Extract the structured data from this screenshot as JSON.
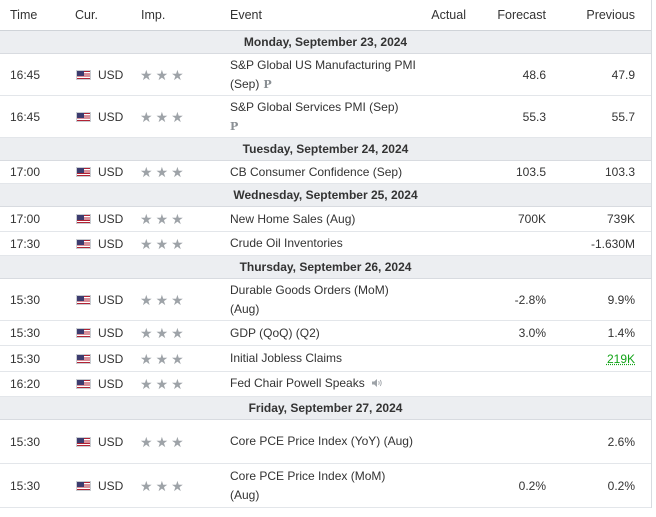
{
  "headers": {
    "time": "Time",
    "currency": "Cur.",
    "importance": "Imp.",
    "event": "Event",
    "actual": "Actual",
    "forecast": "Forecast",
    "previous": "Previous"
  },
  "days": [
    {
      "label": "Monday, September 23, 2024",
      "events": [
        {
          "time": "16:45",
          "currency": "USD",
          "event": "S&P Global US Manufacturing PMI (Sep)",
          "badge": "P",
          "actual": "",
          "forecast": "48.6",
          "previous": "47.9"
        },
        {
          "time": "16:45",
          "currency": "USD",
          "event": "S&P Global Services PMI (Sep)",
          "badge": "P",
          "actual": "",
          "forecast": "55.3",
          "previous": "55.7"
        }
      ]
    },
    {
      "label": "Tuesday, September 24, 2024",
      "events": [
        {
          "time": "17:00",
          "currency": "USD",
          "event": "CB Consumer Confidence (Sep)",
          "actual": "",
          "forecast": "103.5",
          "previous": "103.3"
        }
      ]
    },
    {
      "label": "Wednesday, September 25, 2024",
      "events": [
        {
          "time": "17:00",
          "currency": "USD",
          "event": "New Home Sales (Aug)",
          "actual": "",
          "forecast": "700K",
          "previous": "739K"
        },
        {
          "time": "17:30",
          "currency": "USD",
          "event": "Crude Oil Inventories",
          "actual": "",
          "forecast": "",
          "previous": "-1.630M"
        }
      ]
    },
    {
      "label": "Thursday, September 26, 2024",
      "events": [
        {
          "time": "15:30",
          "currency": "USD",
          "event": "Durable Goods Orders (MoM) (Aug)",
          "actual": "",
          "forecast": "-2.8%",
          "previous": "9.9%"
        },
        {
          "time": "15:30",
          "currency": "USD",
          "event": "GDP (QoQ) (Q2)",
          "actual": "",
          "forecast": "3.0%",
          "previous": "1.4%"
        },
        {
          "time": "15:30",
          "currency": "USD",
          "event": "Initial Jobless Claims",
          "actual": "",
          "forecast": "",
          "previous": "219K",
          "previous_color": "#12a317"
        },
        {
          "time": "16:20",
          "currency": "USD",
          "event": "Fed Chair Powell Speaks",
          "speech_icon": "speaker-icon",
          "actual": "",
          "forecast": "",
          "previous": ""
        }
      ]
    },
    {
      "label": "Friday, September 27, 2024",
      "events": [
        {
          "time": "15:30",
          "currency": "USD",
          "event": "Core PCE Price Index (YoY) (Aug)",
          "actual": "",
          "forecast": "",
          "previous": "2.6%"
        },
        {
          "time": "15:30",
          "currency": "USD",
          "event": "Core PCE Price Index (MoM) (Aug)",
          "actual": "",
          "forecast": "0.2%",
          "previous": "0.2%"
        }
      ]
    }
  ],
  "importance_level": 3
}
